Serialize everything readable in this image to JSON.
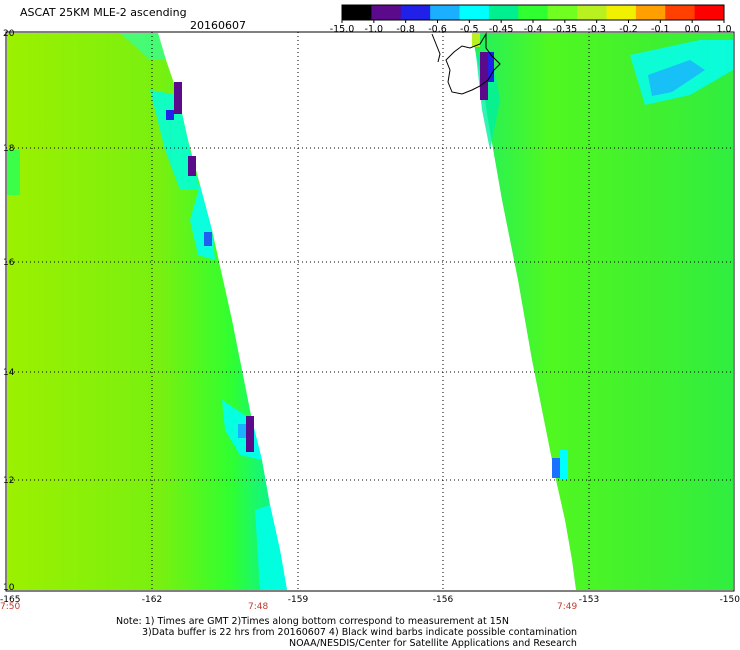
{
  "header": {
    "title": "ASCAT 25KM MLE-2 ascending",
    "date": "20160607"
  },
  "colorbar": {
    "labels": [
      "-15.0",
      "-1.0",
      "-0.8",
      "-0.6",
      "-0.5",
      "-0.45",
      "-0.4",
      "-0.35",
      "-0.3",
      "-0.2",
      "-0.1",
      "0.0",
      "1.0"
    ],
    "colors": [
      "#000000",
      "#5a0a8a",
      "#2020e8",
      "#1ab0ff",
      "#00ffff",
      "#00f090",
      "#30ff30",
      "#70ff20",
      "#b8f020",
      "#f0f000",
      "#ffa000",
      "#ff4000",
      "#ff0000"
    ]
  },
  "axes": {
    "lat_ticks": [
      "20",
      "18",
      "16",
      "14",
      "12",
      "10"
    ],
    "lon_ticks": [
      "-165",
      "-162",
      "-159",
      "-156",
      "-153",
      "-150"
    ],
    "times": [
      "7:50",
      "7:48",
      "7:49"
    ]
  },
  "notes": {
    "line1": "Note: 1) Times are GMT 2)Times along bottom correspond to measurement at 15N",
    "line2": "3)Data buffer is 22 hrs from 20160607 4) Black wind barbs indicate possible contamination",
    "line3": "NOAA/NESDIS/Center for Satellite Applications and Research"
  }
}
